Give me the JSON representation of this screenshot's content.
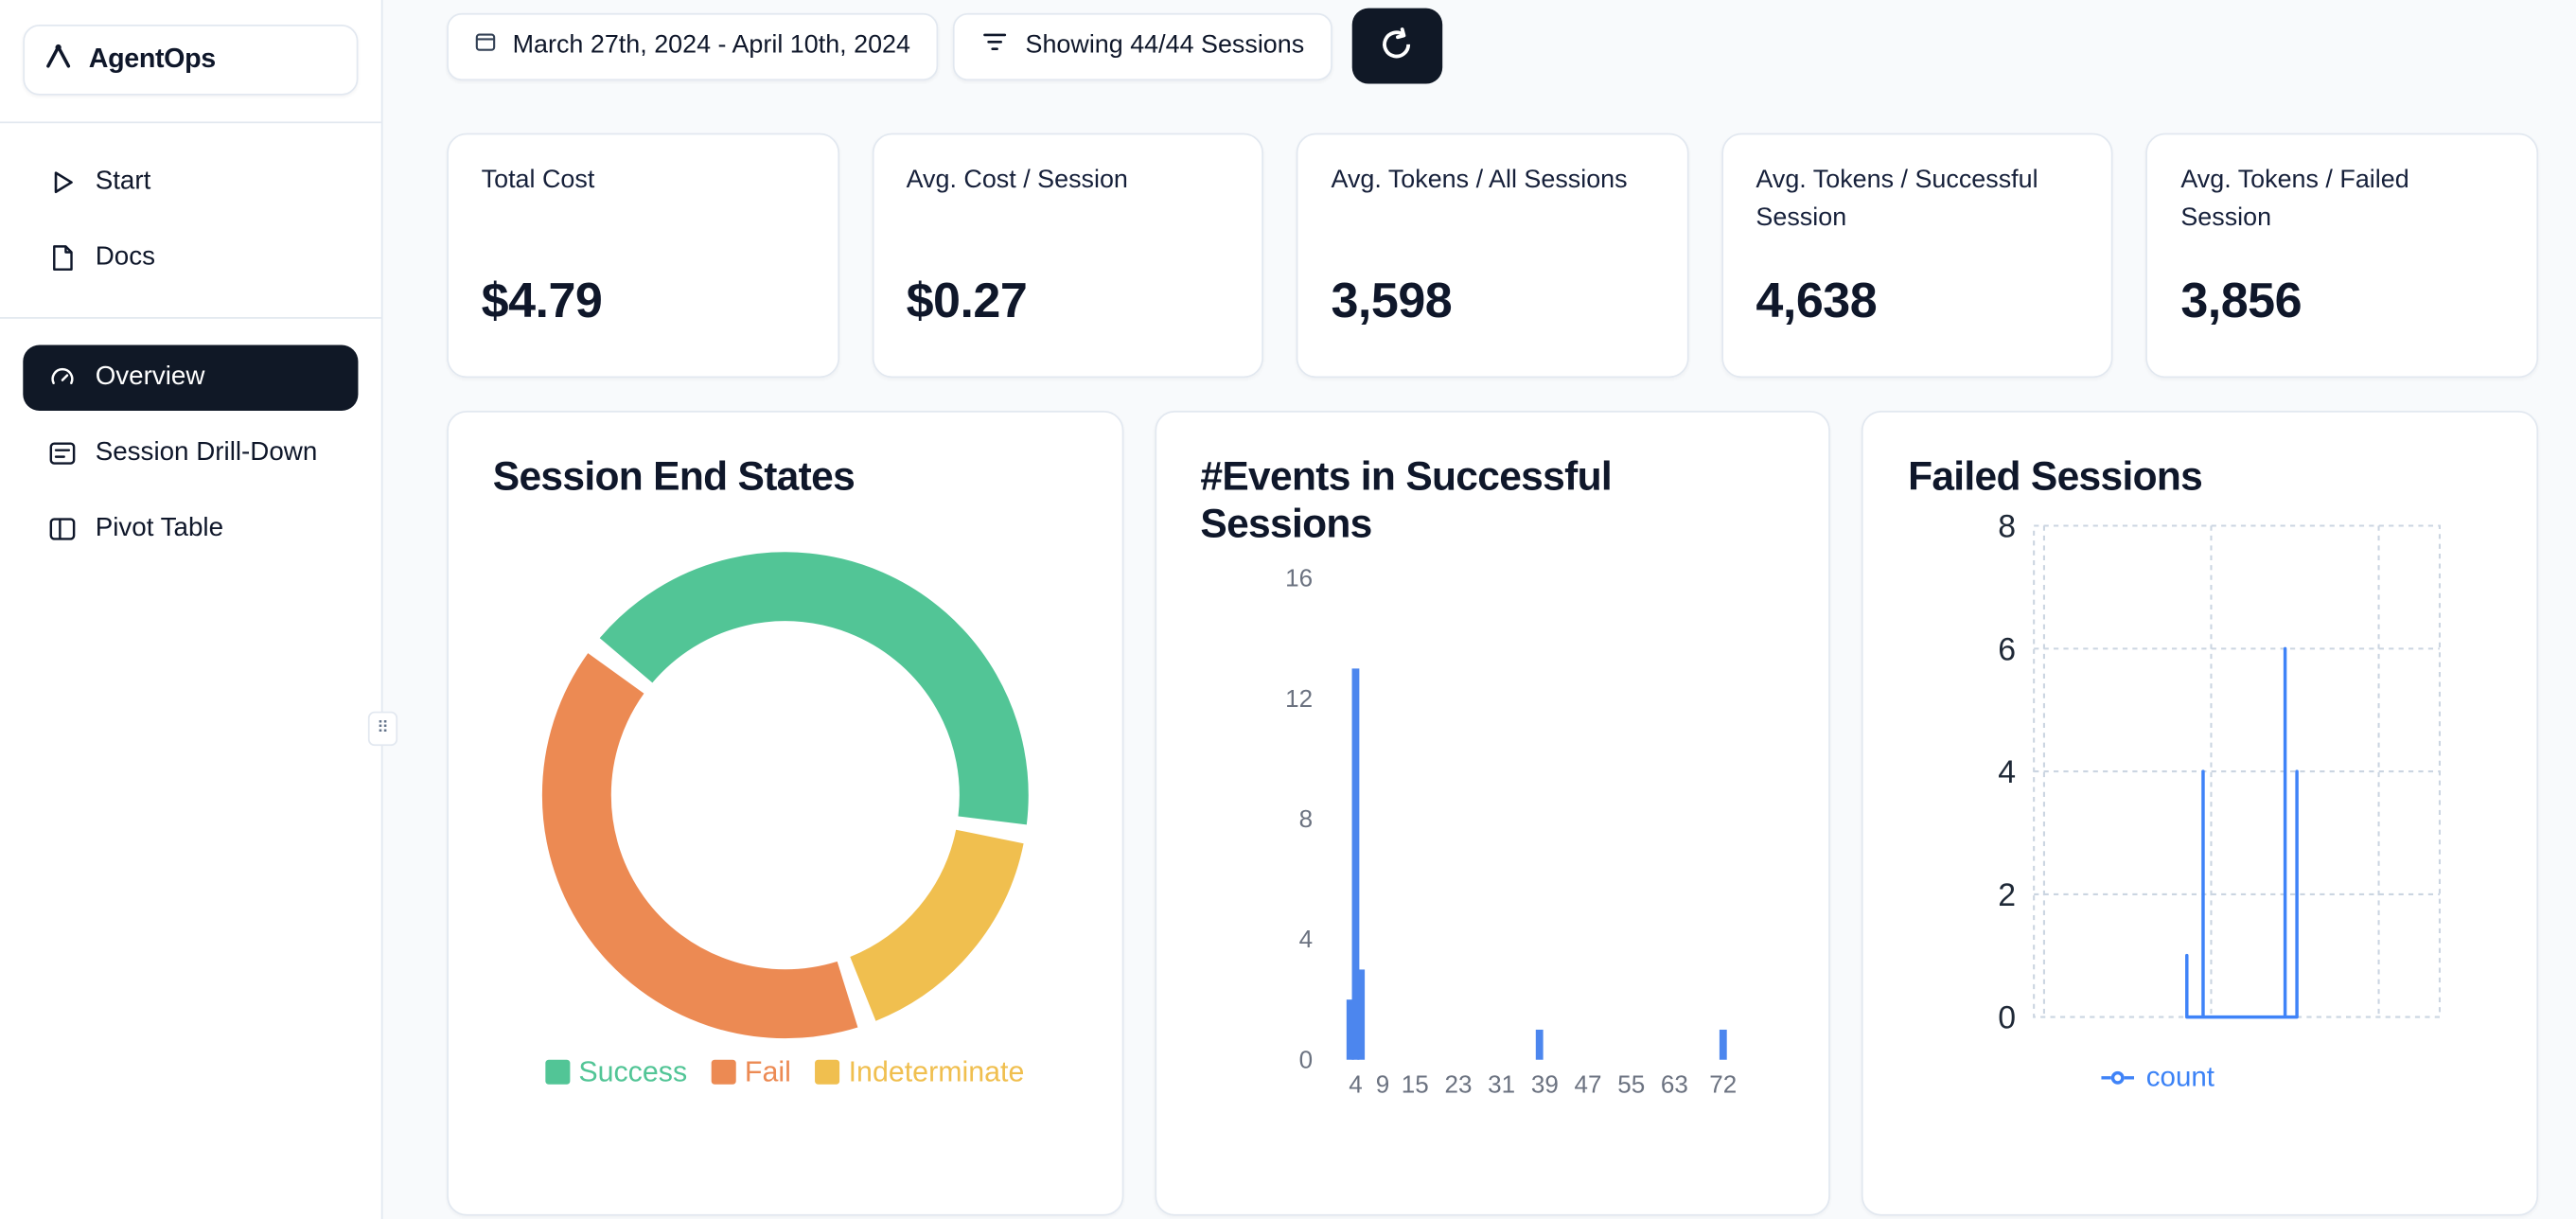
{
  "sidebar": {
    "brand": "AgentOps",
    "items": [
      {
        "label": "Start"
      },
      {
        "label": "Docs"
      },
      {
        "label": "Overview",
        "active": true
      },
      {
        "label": "Session Drill-Down"
      },
      {
        "label": "Pivot Table"
      }
    ]
  },
  "topbar": {
    "date_range": "March 27th, 2024 - April 10th, 2024",
    "sessions_filter": "Showing 44/44 Sessions"
  },
  "stats": [
    {
      "label": "Total Cost",
      "value": "$4.79"
    },
    {
      "label": "Avg. Cost / Session",
      "value": "$0.27"
    },
    {
      "label": "Avg. Tokens / All Sessions",
      "value": "3,598"
    },
    {
      "label": "Avg. Tokens / Successful Session",
      "value": "4,638"
    },
    {
      "label": "Avg. Tokens / Failed Session",
      "value": "3,856"
    }
  ],
  "chart_data": [
    {
      "type": "pie",
      "title": "Session End States",
      "labels": [
        "Success",
        "Fail",
        "Indeterminate"
      ],
      "values": [
        42,
        41,
        17
      ],
      "unit": "percent-of-sessions",
      "colors": [
        "#52c596",
        "#ec8a53",
        "#f0bf4f"
      ],
      "donut": true,
      "start_angle_deg": 308,
      "draw_order": [
        0,
        2,
        1
      ],
      "legend_position": "bottom"
    },
    {
      "type": "bar",
      "title": "#Events in Successful Sessions",
      "points": [
        {
          "x": 3,
          "count": 2
        },
        {
          "x": 4,
          "count": 13
        },
        {
          "x": 5,
          "count": 3
        },
        {
          "x": 38,
          "count": 1
        },
        {
          "x": 72,
          "count": 1
        }
      ],
      "xticks": [
        4,
        9,
        15,
        23,
        31,
        39,
        47,
        55,
        63,
        72
      ],
      "yticks": [
        0,
        4,
        8,
        12,
        16
      ],
      "xlim": [
        0,
        76
      ],
      "ylim": [
        0,
        16
      ],
      "bar_color": "#4c86ee",
      "grid": false
    },
    {
      "type": "line",
      "title": "Failed Sessions",
      "series": [
        {
          "name": "count",
          "color": "#3f83f8",
          "points": [
            {
              "pos": 0.377,
              "count": 1
            },
            {
              "pos": 0.417,
              "count": 4
            },
            {
              "pos": 0.619,
              "count": 6
            },
            {
              "pos": 0.648,
              "count": 4
            }
          ]
        }
      ],
      "yticks": [
        0,
        2,
        4,
        6,
        8
      ],
      "ylim": [
        0,
        8
      ],
      "grid": "dashed",
      "legend_position": "bottom"
    }
  ],
  "ui": {
    "drag_glyph": "⠿",
    "accent_dark": "#101826",
    "page_bg": "#f8fafc",
    "card_border": "#e2e8f0"
  }
}
